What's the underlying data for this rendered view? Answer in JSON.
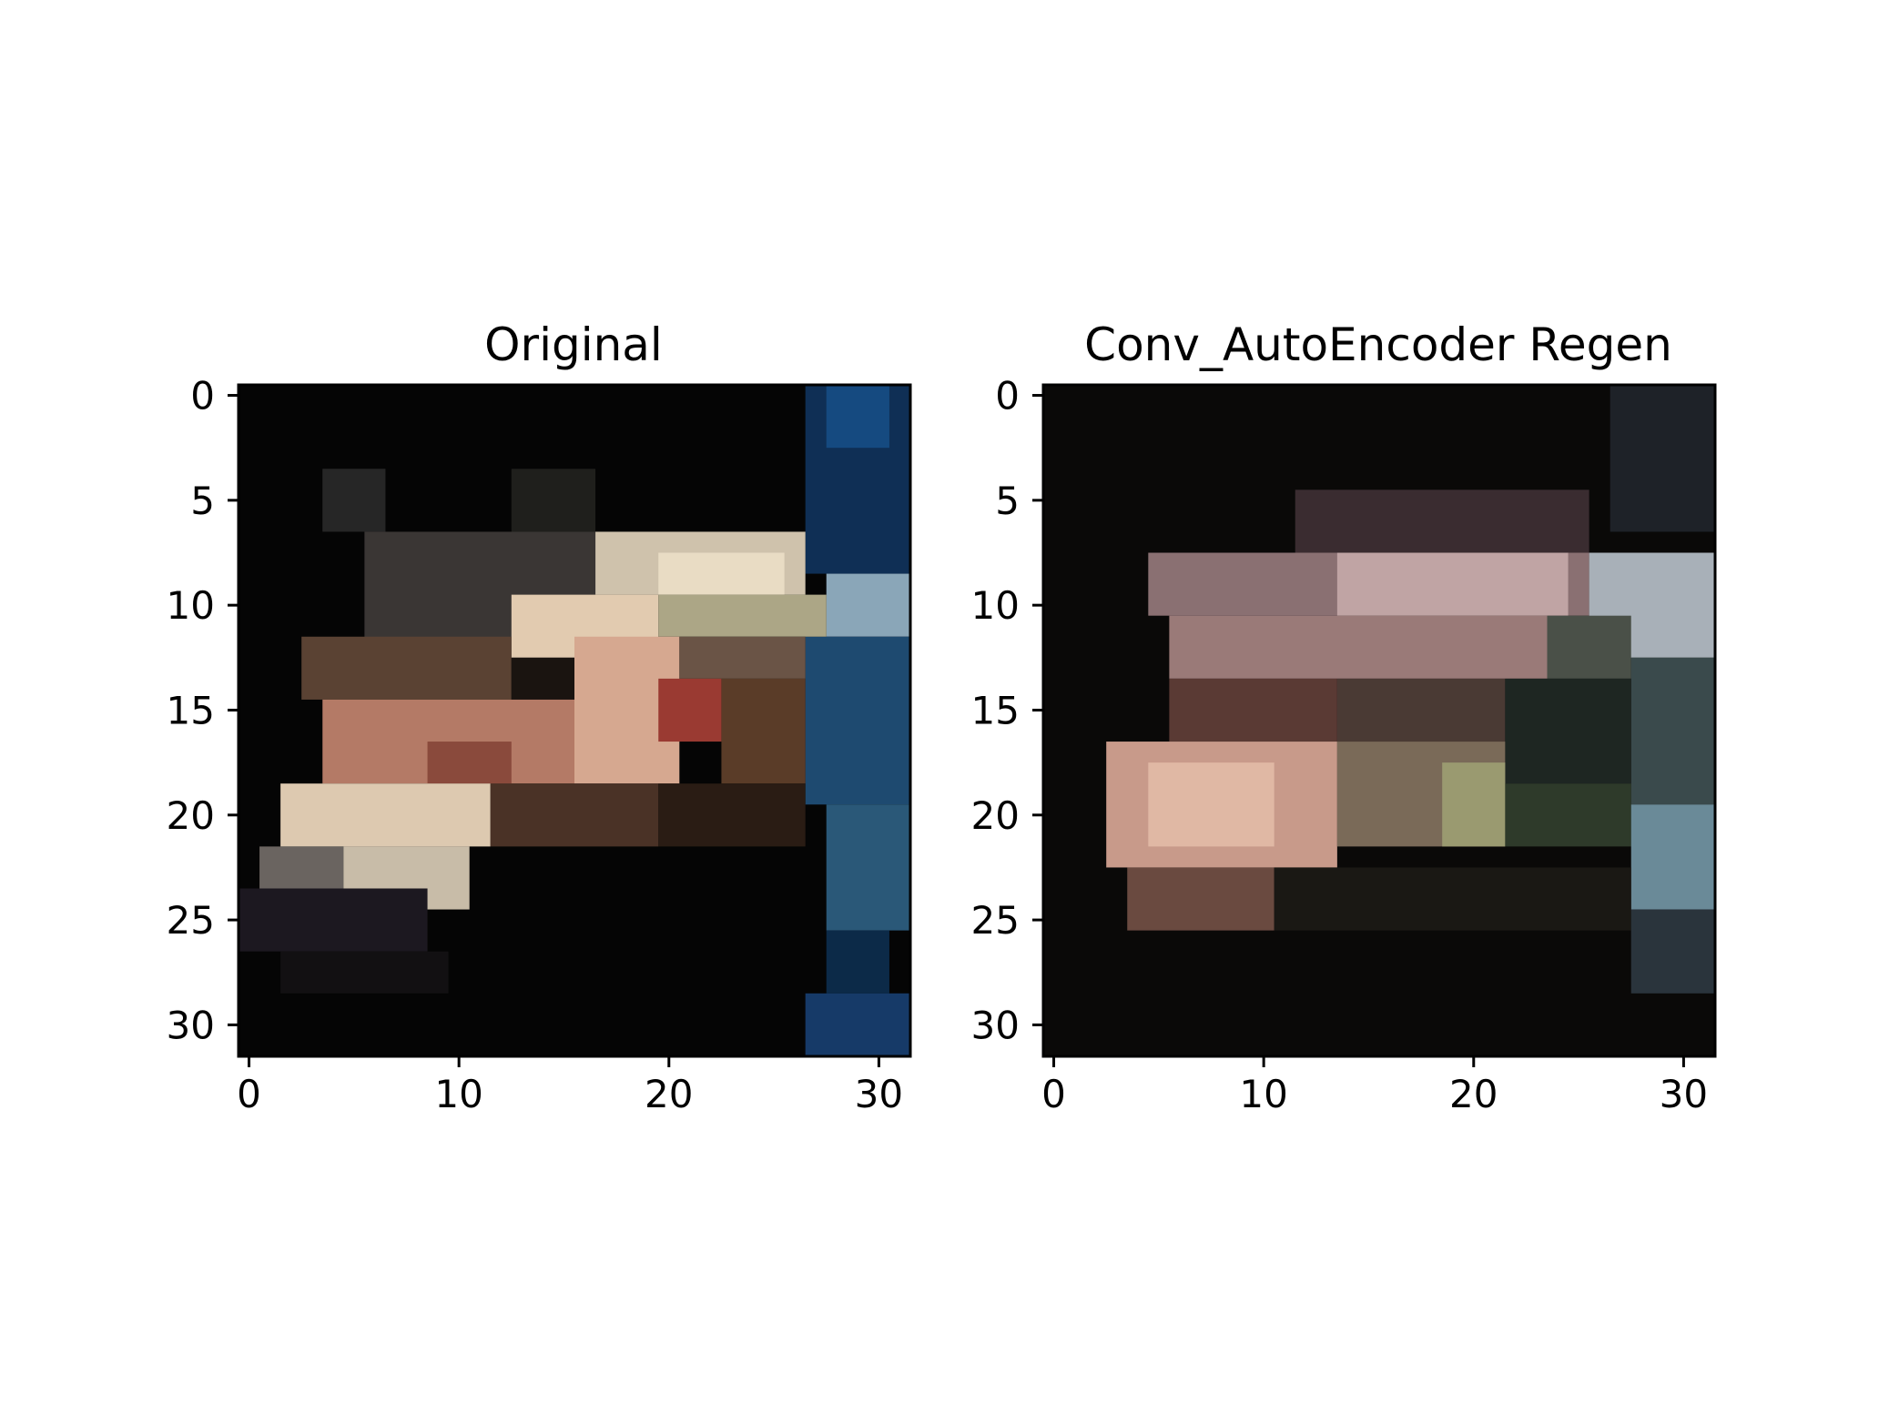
{
  "chart_data": [
    {
      "type": "heatmap",
      "title": "Original",
      "xlabel": "",
      "ylabel": "",
      "xlim": [
        -0.5,
        31.5
      ],
      "ylim": [
        31.5,
        -0.5
      ],
      "x_ticks": [
        "0",
        "10",
        "20",
        "30"
      ],
      "y_ticks": [
        "0",
        "5",
        "10",
        "15",
        "20",
        "25",
        "30"
      ],
      "grid": false,
      "image_size": [
        32,
        32
      ],
      "pixel_source": "regions",
      "base_color": "#050505",
      "regions": [
        {
          "x0": 27,
          "y0": 0,
          "x1": 32,
          "y1": 9,
          "color": "#0f2f55"
        },
        {
          "x0": 28,
          "y0": 0,
          "x1": 31,
          "y1": 3,
          "color": "#154a80"
        },
        {
          "x0": 28,
          "y0": 9,
          "x1": 32,
          "y1": 12,
          "color": "#8aa6b8"
        },
        {
          "x0": 27,
          "y0": 12,
          "x1": 32,
          "y1": 20,
          "color": "#1e4a70"
        },
        {
          "x0": 28,
          "y0": 20,
          "x1": 32,
          "y1": 26,
          "color": "#2a5878"
        },
        {
          "x0": 28,
          "y0": 26,
          "x1": 31,
          "y1": 29,
          "color": "#0c2a48"
        },
        {
          "x0": 27,
          "y0": 29,
          "x1": 32,
          "y1": 32,
          "color": "#163a68"
        },
        {
          "x0": 4,
          "y0": 4,
          "x1": 7,
          "y1": 7,
          "color": "#262626"
        },
        {
          "x0": 13,
          "y0": 4,
          "x1": 17,
          "y1": 7,
          "color": "#1f1f1c"
        },
        {
          "x0": 6,
          "y0": 7,
          "x1": 17,
          "y1": 13,
          "color": "#3a3634"
        },
        {
          "x0": 17,
          "y0": 7,
          "x1": 27,
          "y1": 10,
          "color": "#cfc2ac"
        },
        {
          "x0": 20,
          "y0": 8,
          "x1": 26,
          "y1": 10,
          "color": "#e9dcc4"
        },
        {
          "x0": 13,
          "y0": 10,
          "x1": 20,
          "y1": 13,
          "color": "#e2cbb0"
        },
        {
          "x0": 20,
          "y0": 10,
          "x1": 28,
          "y1": 12,
          "color": "#aca686"
        },
        {
          "x0": 3,
          "y0": 12,
          "x1": 13,
          "y1": 15,
          "color": "#5a4233"
        },
        {
          "x0": 13,
          "y0": 13,
          "x1": 17,
          "y1": 15,
          "color": "#1a1410"
        },
        {
          "x0": 16,
          "y0": 12,
          "x1": 21,
          "y1": 19,
          "color": "#d6a890"
        },
        {
          "x0": 21,
          "y0": 12,
          "x1": 27,
          "y1": 14,
          "color": "#6a5446"
        },
        {
          "x0": 20,
          "y0": 14,
          "x1": 23,
          "y1": 17,
          "color": "#9a3a32"
        },
        {
          "x0": 23,
          "y0": 14,
          "x1": 27,
          "y1": 19,
          "color": "#5a3c28"
        },
        {
          "x0": 4,
          "y0": 15,
          "x1": 16,
          "y1": 19,
          "color": "#b47a66"
        },
        {
          "x0": 9,
          "y0": 17,
          "x1": 13,
          "y1": 19,
          "color": "#8a4a3c"
        },
        {
          "x0": 2,
          "y0": 19,
          "x1": 12,
          "y1": 22,
          "color": "#ddc9b0"
        },
        {
          "x0": 12,
          "y0": 19,
          "x1": 20,
          "y1": 22,
          "color": "#4a3226"
        },
        {
          "x0": 20,
          "y0": 19,
          "x1": 27,
          "y1": 22,
          "color": "#2a1c14"
        },
        {
          "x0": 1,
          "y0": 22,
          "x1": 5,
          "y1": 24,
          "color": "#6a6460"
        },
        {
          "x0": 5,
          "y0": 22,
          "x1": 11,
          "y1": 25,
          "color": "#c8bca8"
        },
        {
          "x0": 0,
          "y0": 24,
          "x1": 9,
          "y1": 27,
          "color": "#1c1820"
        },
        {
          "x0": 2,
          "y0": 27,
          "x1": 10,
          "y1": 29,
          "color": "#121012"
        }
      ]
    },
    {
      "type": "heatmap",
      "title": "Conv_AutoEncoder Regen",
      "xlabel": "",
      "ylabel": "",
      "xlim": [
        -0.5,
        31.5
      ],
      "ylim": [
        31.5,
        -0.5
      ],
      "x_ticks": [
        "0",
        "10",
        "20",
        "30"
      ],
      "y_ticks": [
        "0",
        "5",
        "10",
        "15",
        "20",
        "25",
        "30"
      ],
      "grid": false,
      "image_size": [
        32,
        32
      ],
      "pixel_source": "regions",
      "base_color": "#0a0908",
      "regions": [
        {
          "x0": 27,
          "y0": 0,
          "x1": 32,
          "y1": 7,
          "color": "#1e2228"
        },
        {
          "x0": 12,
          "y0": 5,
          "x1": 26,
          "y1": 8,
          "color": "#3a2c30"
        },
        {
          "x0": 5,
          "y0": 8,
          "x1": 26,
          "y1": 11,
          "color": "#8a7072"
        },
        {
          "x0": 14,
          "y0": 8,
          "x1": 25,
          "y1": 11,
          "color": "#c0a4a4"
        },
        {
          "x0": 26,
          "y0": 8,
          "x1": 32,
          "y1": 13,
          "color": "#a8b0b8"
        },
        {
          "x0": 6,
          "y0": 11,
          "x1": 24,
          "y1": 14,
          "color": "#9a7a78"
        },
        {
          "x0": 24,
          "y0": 11,
          "x1": 28,
          "y1": 14,
          "color": "#4a5048"
        },
        {
          "x0": 28,
          "y0": 13,
          "x1": 32,
          "y1": 20,
          "color": "#3a4a4c"
        },
        {
          "x0": 6,
          "y0": 14,
          "x1": 14,
          "y1": 17,
          "color": "#5a3a34"
        },
        {
          "x0": 14,
          "y0": 14,
          "x1": 22,
          "y1": 17,
          "color": "#4a3a34"
        },
        {
          "x0": 22,
          "y0": 14,
          "x1": 28,
          "y1": 19,
          "color": "#1e2622"
        },
        {
          "x0": 3,
          "y0": 17,
          "x1": 14,
          "y1": 23,
          "color": "#c89a8a"
        },
        {
          "x0": 5,
          "y0": 18,
          "x1": 11,
          "y1": 22,
          "color": "#e0b8a4"
        },
        {
          "x0": 14,
          "y0": 17,
          "x1": 22,
          "y1": 22,
          "color": "#7a6a58"
        },
        {
          "x0": 19,
          "y0": 18,
          "x1": 22,
          "y1": 22,
          "color": "#9a9a70"
        },
        {
          "x0": 22,
          "y0": 19,
          "x1": 28,
          "y1": 22,
          "color": "#2e3a2a"
        },
        {
          "x0": 28,
          "y0": 20,
          "x1": 32,
          "y1": 25,
          "color": "#6a8a98"
        },
        {
          "x0": 4,
          "y0": 23,
          "x1": 11,
          "y1": 26,
          "color": "#6a4a40"
        },
        {
          "x0": 11,
          "y0": 23,
          "x1": 28,
          "y1": 26,
          "color": "#1a1814"
        },
        {
          "x0": 28,
          "y0": 25,
          "x1": 32,
          "y1": 29,
          "color": "#2a343c"
        }
      ]
    }
  ]
}
